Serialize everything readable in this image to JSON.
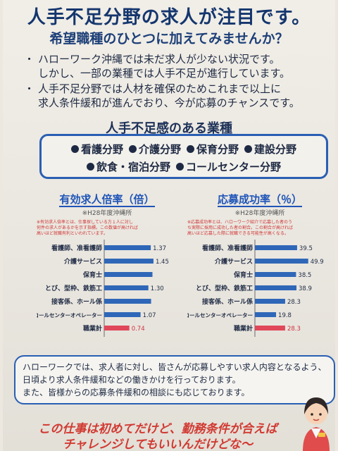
{
  "header": {
    "title": "人手不足分野の求人が注目です。",
    "subtitle": "希望職種のひとつに加えてみませんか？"
  },
  "bullets": [
    [
      "ハローワーク沖縄では未だ求人が少ない状況です。",
      "しかし、一部の業種では人手不足が進行しています。"
    ],
    [
      "人手不足分野では人材を確保のためこれまで以上に",
      "求人条件緩和が進んでおり、今が応募のチャンスです。"
    ]
  ],
  "jobs": {
    "title": "人手不足感のある業種",
    "row1": [
      "看護分野",
      "介護分野",
      "保育分野",
      "建設分野"
    ],
    "row2": [
      "飲食・宿泊分野",
      "コールセンター分野"
    ]
  },
  "chart_data": [
    {
      "type": "bar",
      "title": "有効求人倍率（倍）",
      "source": "※H28年度沖縄所",
      "note": [
        "※有効求人倍率とは、仕事探している方１人に対し",
        "何件の求人があるかを示す指標。この数値が高ければ",
        "高いほど就職有利といわれています。"
      ],
      "categories": [
        "看護師、准看護師",
        "介護サービス",
        "保育士",
        "とび、型枠、鉄筋工",
        "接客係、ホール係",
        "コールセンターオペレーター",
        "職業計"
      ],
      "values": [
        1.37,
        1.45,
        1.42,
        1.3,
        1.38,
        1.07,
        0.74
      ],
      "labels": [
        "1.37",
        "1.45",
        "",
        "1.30",
        "",
        "1.07",
        "0.74"
      ],
      "xlim": [
        0,
        1.7
      ]
    },
    {
      "type": "bar",
      "title": "応募成功率（％）",
      "source": "※H28年度沖縄所",
      "note": [
        "※応募成功率とは、ハローワーク紹介で応募した者のう",
        "ち実際に採用に成功した者の割合。この割合が高ければ",
        "高いほど応募した際に就職できる可能性が高くなる。"
      ],
      "categories": [
        "看護師、准看護師",
        "介護サービス",
        "保育士",
        "とび、型枠、鉄筋工",
        "接客係、ホール係",
        "コールセンターオペレーター",
        "職業計"
      ],
      "values": [
        39.5,
        49.9,
        38.5,
        38.9,
        28.3,
        19.8,
        28.3
      ],
      "labels": [
        "39.5",
        "49.9",
        "38.5",
        "38.9",
        "28.3",
        "19.8",
        "28.3"
      ],
      "xlim": [
        0,
        58
      ]
    }
  ],
  "colors": {
    "bar": "#2f67b8",
    "bar_total": "#e0475a",
    "label_total": "#d0323f"
  },
  "info": [
    "ハローワークでは、求人者に対し、皆さんが応募しやすい求人内容となるよう、",
    "日頃より求人条件緩和などの働きかけを行っております。",
    "また、皆様からの応募条件緩和の相談にも応じております。"
  ],
  "slogan": [
    "この仕事は初めてだけど、勤務条件が合えば",
    "チャレンジしてもいいんだけどな～"
  ]
}
